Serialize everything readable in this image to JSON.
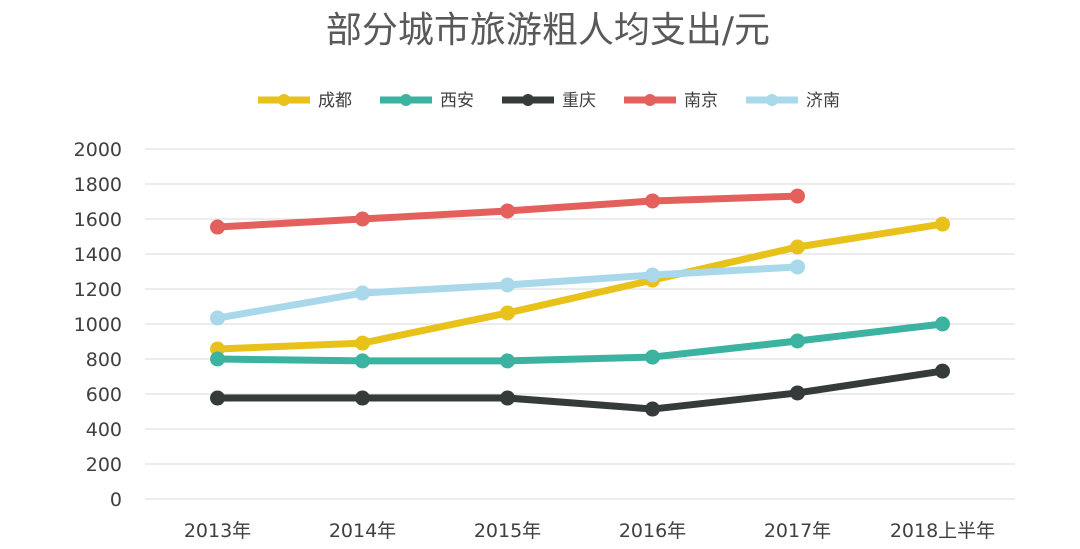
{
  "chart_data": {
    "type": "line",
    "title": "部分城市旅游粗人均支出/元",
    "xlabel": "",
    "ylabel": "",
    "categories": [
      "2013年",
      "2014年",
      "2015年",
      "2016年",
      "2017年",
      "2018上半年"
    ],
    "ylim": [
      0,
      2000
    ],
    "yticks": [
      0,
      200,
      400,
      600,
      800,
      1000,
      1200,
      1400,
      1600,
      1800,
      2000
    ],
    "grid": true,
    "legend": "top",
    "series": [
      {
        "name": "成都",
        "color": "#E8C21A",
        "values": [
          857,
          891,
          1063,
          1251,
          1440,
          1571
        ]
      },
      {
        "name": "西安",
        "color": "#3BB3A0",
        "values": [
          800,
          789,
          789,
          811,
          903,
          1000
        ]
      },
      {
        "name": "重庆",
        "color": "#353B3B",
        "values": [
          577,
          577,
          577,
          514,
          606,
          731
        ]
      },
      {
        "name": "南京",
        "color": "#E4605C",
        "values": [
          1554,
          1600,
          1646,
          1703,
          1731,
          null
        ]
      },
      {
        "name": "济南",
        "color": "#A8D8EA",
        "values": [
          1034,
          1177,
          1223,
          1280,
          1326,
          null
        ]
      }
    ]
  }
}
